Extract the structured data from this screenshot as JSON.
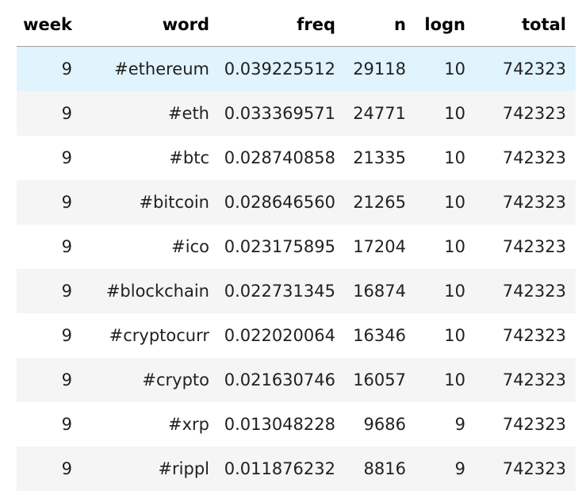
{
  "table": {
    "columns": [
      "week",
      "word",
      "freq",
      "n",
      "logn",
      "total"
    ],
    "rows": [
      {
        "week": "9",
        "word": "#ethereum",
        "freq": "0.039225512",
        "n": "29118",
        "logn": "10",
        "total": "742323"
      },
      {
        "week": "9",
        "word": "#eth",
        "freq": "0.033369571",
        "n": "24771",
        "logn": "10",
        "total": "742323"
      },
      {
        "week": "9",
        "word": "#btc",
        "freq": "0.028740858",
        "n": "21335",
        "logn": "10",
        "total": "742323"
      },
      {
        "week": "9",
        "word": "#bitcoin",
        "freq": "0.028646560",
        "n": "21265",
        "logn": "10",
        "total": "742323"
      },
      {
        "week": "9",
        "word": "#ico",
        "freq": "0.023175895",
        "n": "17204",
        "logn": "10",
        "total": "742323"
      },
      {
        "week": "9",
        "word": "#blockchain",
        "freq": "0.022731345",
        "n": "16874",
        "logn": "10",
        "total": "742323"
      },
      {
        "week": "9",
        "word": "#cryptocurr",
        "freq": "0.022020064",
        "n": "16346",
        "logn": "10",
        "total": "742323"
      },
      {
        "week": "9",
        "word": "#crypto",
        "freq": "0.021630746",
        "n": "16057",
        "logn": "10",
        "total": "742323"
      },
      {
        "week": "9",
        "word": "#xrp",
        "freq": "0.013048228",
        "n": "9686",
        "logn": "9",
        "total": "742323"
      },
      {
        "week": "9",
        "word": "#rippl",
        "freq": "0.011876232",
        "n": "8816",
        "logn": "9",
        "total": "742323"
      }
    ]
  },
  "colors": {
    "hover_row": "#e1f3fc",
    "striped_row": "#f5f5f5",
    "header_border": "#9e9e9e"
  }
}
